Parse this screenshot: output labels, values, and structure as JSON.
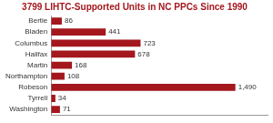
{
  "chart_data": {
    "type": "bar",
    "orientation": "horizontal",
    "title": "3799 LIHTC-Supported Units in NC PPCs Since 1990",
    "categories": [
      "Bertie",
      "Bladen",
      "Columbus",
      "Halifax",
      "Martin",
      "Northampton",
      "Robeson",
      "Tyrrell",
      "Washington"
    ],
    "values": [
      86,
      441,
      723,
      678,
      168,
      108,
      1490,
      34,
      71
    ],
    "value_labels": [
      "86",
      "441",
      "723",
      "678",
      "168",
      "108",
      "1,490",
      "34",
      "71"
    ],
    "color": "#a3171d",
    "xlim": [
      0,
      1750
    ],
    "grid": false,
    "data_labels": true,
    "tick_labels": "y"
  }
}
